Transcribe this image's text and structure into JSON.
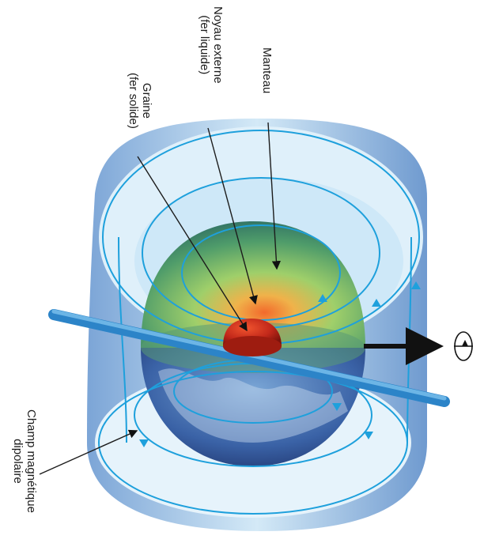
{
  "labels": {
    "manteau": "Manteau",
    "noyau_line1": "Noyau externe",
    "noyau_line2": "(fer liquide)",
    "graine_line1": "Graine",
    "graine_line2": "(fer solide)",
    "champ_line1": "Champ magnétique",
    "champ_line2": "dipolaire"
  },
  "colors": {
    "shell_light": "#d9eef9",
    "shell_mid": "#9fcbe9",
    "shell_dark": "#4e7fbf",
    "field_line": "#1ea0dc",
    "axis": "#3a9fd8",
    "inner_core": "#c2281a",
    "arrow": "#111111"
  }
}
